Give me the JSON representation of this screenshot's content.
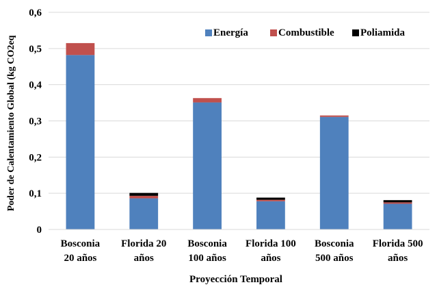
{
  "chart_data": {
    "type": "bar",
    "stacked": true,
    "title": "",
    "xlabel": "Proyección Temporal",
    "ylabel": "Poder de Calentamiento Global (kg CO2eq",
    "ylim": [
      0,
      0.6
    ],
    "yticks": [
      0,
      0.1,
      0.2,
      0.3,
      0.4,
      0.5,
      0.6
    ],
    "ytick_labels": [
      "0",
      "0,1",
      "0,2",
      "0,3",
      "0,4",
      "0,5",
      "0,6"
    ],
    "grid": true,
    "legend_position": "top-right",
    "categories": [
      [
        "Bosconia",
        "20 años"
      ],
      [
        "Florida 20",
        "años"
      ],
      [
        "Bosconia",
        "100 años"
      ],
      [
        "Florida 100",
        "años"
      ],
      [
        "Bosconia",
        "500 años"
      ],
      [
        "Florida 500",
        "años"
      ]
    ],
    "series": [
      {
        "name": "Energía",
        "color": "#4F81BD",
        "values": [
          0.482,
          0.086,
          0.351,
          0.078,
          0.311,
          0.071
        ]
      },
      {
        "name": "Combustible",
        "color": "#C0504D",
        "values": [
          0.033,
          0.007,
          0.012,
          0.004,
          0.004,
          0.004
        ]
      },
      {
        "name": "Poliamida",
        "color": "#000000",
        "values": [
          0.0,
          0.008,
          0.0,
          0.006,
          0.0,
          0.006
        ]
      }
    ]
  }
}
